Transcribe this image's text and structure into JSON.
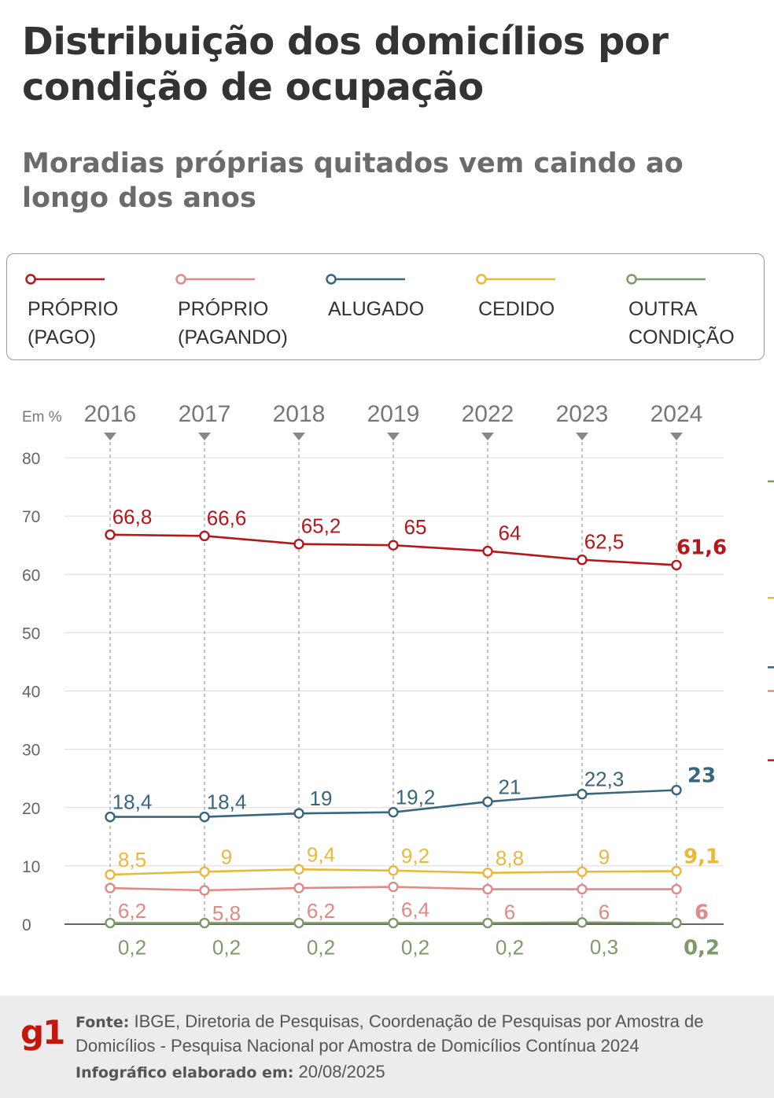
{
  "title": "Distribuição dos domicílios por condição de ocupação",
  "subtitle": "Moradias próprias quitados vem caindo ao longo dos anos",
  "legend": [
    {
      "label": "PRÓPRIO\n(PAGO)",
      "color": "#b5171b"
    },
    {
      "label": "PRÓPRIO\n(PAGANDO)",
      "color": "#df8a86"
    },
    {
      "label": "ALUGADO",
      "color": "#38667c"
    },
    {
      "label": "CEDIDO",
      "color": "#e7b93c"
    },
    {
      "label": "OUTRA\nCONDIÇÃO",
      "color": "#7d9a6b"
    }
  ],
  "chart_data": {
    "type": "line",
    "unit_label": "Em %",
    "x": [
      "2016",
      "2017",
      "2018",
      "2019",
      "2022",
      "2023",
      "2024"
    ],
    "ylim": [
      0,
      80
    ],
    "yticks": [
      0,
      10,
      20,
      30,
      40,
      50,
      60,
      70,
      80
    ],
    "grid": true,
    "series": [
      {
        "name": "PRÓPRIO (PAGO)",
        "color": "#b5171b",
        "values": [
          66.8,
          66.6,
          65.2,
          65,
          64,
          62.5,
          61.6
        ],
        "labels": [
          "66,8",
          "66,6",
          "65,2",
          "65",
          "64",
          "62,5",
          "61,6"
        ]
      },
      {
        "name": "ALUGADO",
        "color": "#38667c",
        "values": [
          18.4,
          18.4,
          19,
          19.2,
          21,
          22.3,
          23
        ],
        "labels": [
          "18,4",
          "18,4",
          "19",
          "19,2",
          "21",
          "22,3",
          "23"
        ]
      },
      {
        "name": "CEDIDO",
        "color": "#e7b93c",
        "values": [
          8.5,
          9,
          9.4,
          9.2,
          8.8,
          9,
          9.1
        ],
        "labels": [
          "8,5",
          "9",
          "9,4",
          "9,2",
          "8,8",
          "9",
          "9,1"
        ]
      },
      {
        "name": "PRÓPRIO (PAGANDO)",
        "color": "#df8a86",
        "values": [
          6.2,
          5.8,
          6.2,
          6.4,
          6,
          6,
          6
        ],
        "labels": [
          "6,2",
          "5,8",
          "6,2",
          "6,4",
          "6",
          "6",
          "6"
        ]
      },
      {
        "name": "OUTRA CONDIÇÃO",
        "color": "#7d9a6b",
        "values": [
          0.2,
          0.2,
          0.2,
          0.2,
          0.2,
          0.3,
          0.2
        ],
        "labels": [
          "0,2",
          "0,2",
          "0,2",
          "0,2",
          "0,2",
          "0,3",
          "0,2"
        ]
      }
    ]
  },
  "footer": {
    "logo": "g1",
    "source_label": "Fonte:",
    "source_text": "IBGE, Diretoria de Pesquisas, Coordenação de Pesquisas por Amostra de Domicílios - Pesquisa Nacional por Amostra de Domicílios Contínua 2024",
    "made_label": "Infográfico elaborado em:",
    "made_date": "20/08/2025"
  }
}
